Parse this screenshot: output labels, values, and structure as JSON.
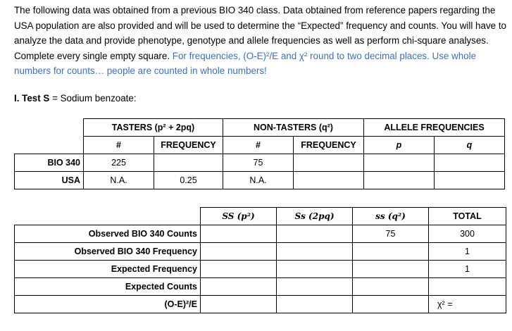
{
  "intro": {
    "text": "The following data was obtained from a previous BIO 340 class. Data obtained from reference papers regarding the USA population are also provided and will be used to determine the “Expected” frequency and counts. You will have to analyze the data and provide phenotype, genotype and allele frequencies as well as perform chi-square analyses. Complete every single empty square.",
    "blue": "For frequencies, (O-E)²/E and χ² round to two decimal places. Use whole numbers for counts… people are counted in whole numbers!"
  },
  "section": {
    "title": "I. Test S",
    "rest": " = Sodium benzoate:"
  },
  "table1": {
    "tasters": "TASTERS (p² + 2pq)",
    "nontasters": "NON-TASTERS (q²)",
    "allele": "ALLELE FREQUENCIES",
    "num": "#",
    "freq": "FREQUENCY",
    "p": "p",
    "q": "q",
    "rows": [
      {
        "label": "BIO 340",
        "t_num": "225",
        "t_freq": "",
        "n_num": "75",
        "n_freq": "",
        "p": "",
        "q": ""
      },
      {
        "label": "USA",
        "t_num": "N.A.",
        "t_freq": "0.25",
        "n_num": "N.A.",
        "n_freq": "",
        "p": "",
        "q": ""
      }
    ]
  },
  "table2": {
    "headers": [
      "SS (p²)",
      "Ss (2pq)",
      "ss (q²)",
      "TOTAL"
    ],
    "rows": [
      {
        "label": "Observed BIO 340 Counts",
        "SS": "",
        "Ss": "",
        "ss": "75",
        "total": "300"
      },
      {
        "label": "Observed BIO 340 Frequency",
        "SS": "",
        "Ss": "",
        "ss": "",
        "total": "1"
      },
      {
        "label": "Expected Frequency",
        "SS": "",
        "Ss": "",
        "ss": "",
        "total": "1"
      },
      {
        "label": "Expected Counts",
        "SS": "",
        "Ss": "",
        "ss": "",
        "total": ""
      },
      {
        "label": "(O-E)²/E",
        "SS": "",
        "Ss": "",
        "ss": "",
        "total": "χ² ="
      }
    ]
  }
}
